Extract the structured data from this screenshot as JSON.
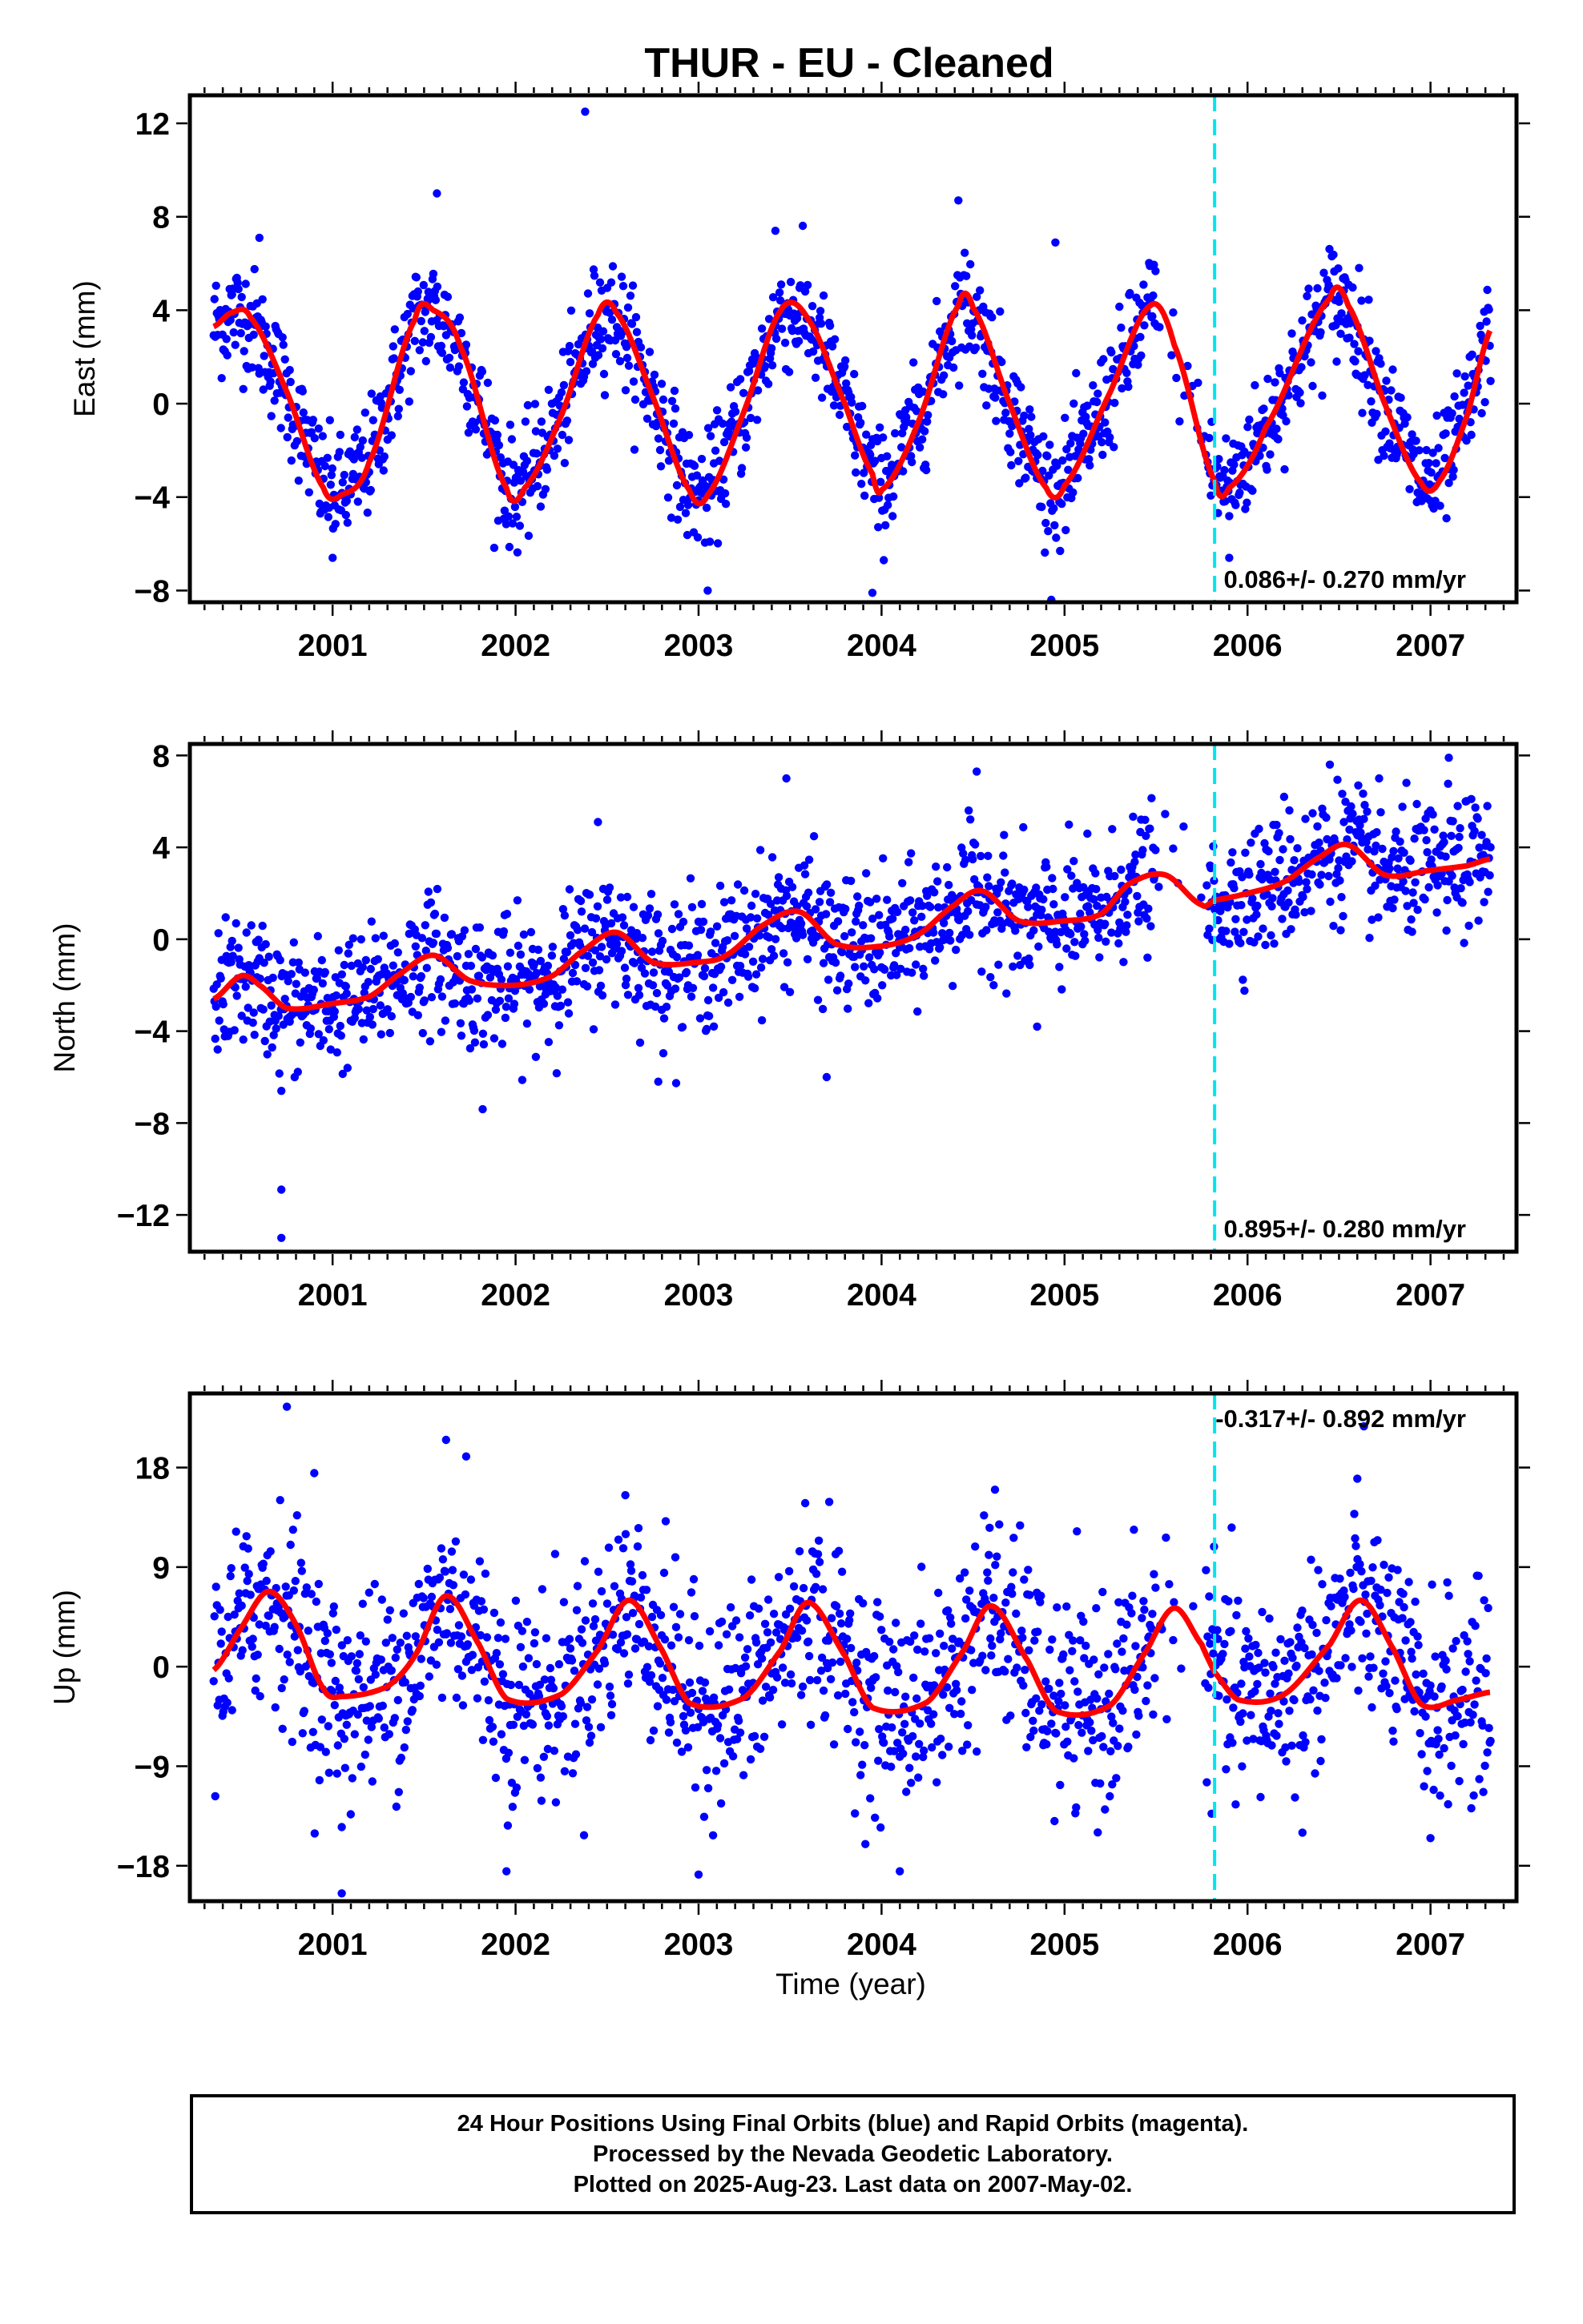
{
  "title": "THUR  - EU - Cleaned",
  "colors": {
    "points": "#0000ff",
    "fit": "#ff0000",
    "break_line": "#00e5ee",
    "frame": "#000000"
  },
  "footer": {
    "line1": "24 Hour Positions Using Final Orbits (blue) and Rapid Orbits (magenta).",
    "line2": "Processed by the Nevada Geodetic Laboratory.",
    "line3": "Plotted on 2025-Aug-23. Last data on 2007-May-02."
  },
  "chart_data": [
    {
      "type": "scatter",
      "name": "east",
      "ylabel": "East (mm)",
      "xlim": [
        2000.22,
        2007.47
      ],
      "ylim": [
        -8.5,
        13.2
      ],
      "yticks": [
        -8,
        -4,
        0,
        4,
        8,
        12
      ],
      "xticks": [
        2001,
        2002,
        2003,
        2004,
        2005,
        2006,
        2007
      ],
      "break_year": 2005.82,
      "velocity_label": "0.086+/- 0.270 mm/yr",
      "label_position": "bottom-right",
      "data_range": [
        2000.35,
        2007.33
      ],
      "gap": [
        2005.5,
        2005.78
      ],
      "trend": 0.086,
      "amplitude": 4.0,
      "phase": 2000.45,
      "noise": 1.2,
      "outliers": [
        [
          2002.38,
          12.5
        ],
        [
          2001.57,
          9.0
        ],
        [
          2004.42,
          8.7
        ],
        [
          2000.6,
          7.1
        ],
        [
          2003.42,
          7.4
        ],
        [
          2004.95,
          6.9
        ],
        [
          2003.95,
          -8.1
        ],
        [
          2003.05,
          -8.0
        ],
        [
          2005.9,
          -6.6
        ],
        [
          2001.0,
          -6.6
        ]
      ],
      "fit": [
        [
          2000.35,
          3.3
        ],
        [
          2000.45,
          3.9
        ],
        [
          2000.55,
          3.7
        ],
        [
          2000.75,
          0.5
        ],
        [
          2000.95,
          -3.6
        ],
        [
          2001.05,
          -3.9
        ],
        [
          2001.2,
          -2.5
        ],
        [
          2001.45,
          3.6
        ],
        [
          2001.55,
          4.0
        ],
        [
          2001.7,
          2.4
        ],
        [
          2001.95,
          -3.6
        ],
        [
          2002.05,
          -3.6
        ],
        [
          2002.25,
          -0.5
        ],
        [
          2002.45,
          3.8
        ],
        [
          2002.55,
          3.9
        ],
        [
          2002.75,
          0.3
        ],
        [
          2002.95,
          -3.7
        ],
        [
          2003.05,
          -3.9
        ],
        [
          2003.25,
          -0.3
        ],
        [
          2003.45,
          4.0
        ],
        [
          2003.6,
          3.6
        ],
        [
          2003.8,
          0.0
        ],
        [
          2003.95,
          -3.0
        ],
        [
          2004.0,
          -3.7
        ],
        [
          2004.2,
          -0.8
        ],
        [
          2004.42,
          4.2
        ],
        [
          2004.5,
          4.1
        ],
        [
          2004.7,
          0.0
        ],
        [
          2004.9,
          -3.6
        ],
        [
          2005.0,
          -3.5
        ],
        [
          2005.25,
          0.5
        ],
        [
          2005.47,
          4.2
        ],
        [
          2005.6,
          2.5
        ],
        [
          2005.82,
          -3.3
        ],
        [
          2005.9,
          -3.6
        ],
        [
          2006.1,
          -1.0
        ],
        [
          2006.45,
          4.5
        ],
        [
          2006.55,
          4.2
        ],
        [
          2006.75,
          0.0
        ],
        [
          2006.95,
          -3.4
        ],
        [
          2007.05,
          -3.3
        ],
        [
          2007.2,
          -0.5
        ],
        [
          2007.33,
          3.2
        ]
      ]
    },
    {
      "type": "scatter",
      "name": "north",
      "ylabel": "North (mm)",
      "xlim": [
        2000.22,
        2007.47
      ],
      "ylim": [
        -13.6,
        8.5
      ],
      "yticks": [
        -12,
        -8,
        -4,
        0,
        4,
        8
      ],
      "xticks": [
        2001,
        2002,
        2003,
        2004,
        2005,
        2006,
        2007
      ],
      "break_year": 2005.82,
      "velocity_label": "0.895+/- 0.280 mm/yr",
      "label_position": "bottom-right",
      "data_range": [
        2000.35,
        2007.33
      ],
      "gap": [
        2005.5,
        2005.78
      ],
      "trend": 0.895,
      "amplitude": 0.8,
      "phase": 2000.55,
      "noise": 1.4,
      "outliers": [
        [
          2000.72,
          -10.9
        ],
        [
          2000.72,
          -13.0
        ],
        [
          2000.72,
          -6.6
        ],
        [
          2001.82,
          -7.4
        ],
        [
          2003.48,
          7.0
        ],
        [
          2003.7,
          -6.0
        ],
        [
          2002.78,
          -6.2
        ],
        [
          2004.52,
          7.3
        ],
        [
          2006.45,
          7.6
        ],
        [
          2007.1,
          7.9
        ],
        [
          2002.45,
          5.1
        ],
        [
          2004.85,
          -3.8
        ],
        [
          2006.2,
          6.2
        ]
      ],
      "fit": [
        [
          2000.35,
          -2.6
        ],
        [
          2000.5,
          -1.6
        ],
        [
          2000.6,
          -2.0
        ],
        [
          2000.75,
          -3.0
        ],
        [
          2001.0,
          -2.8
        ],
        [
          2001.2,
          -2.5
        ],
        [
          2001.35,
          -1.6
        ],
        [
          2001.55,
          -0.7
        ],
        [
          2001.75,
          -1.8
        ],
        [
          2002.0,
          -2.0
        ],
        [
          2002.2,
          -1.6
        ],
        [
          2002.35,
          -0.6
        ],
        [
          2002.55,
          0.3
        ],
        [
          2002.75,
          -1.0
        ],
        [
          2003.0,
          -1.0
        ],
        [
          2003.15,
          -0.7
        ],
        [
          2003.35,
          0.6
        ],
        [
          2003.55,
          1.2
        ],
        [
          2003.75,
          -0.2
        ],
        [
          2004.0,
          -0.3
        ],
        [
          2004.2,
          0.2
        ],
        [
          2004.4,
          1.5
        ],
        [
          2004.55,
          2.1
        ],
        [
          2004.75,
          0.8
        ],
        [
          2005.0,
          0.8
        ],
        [
          2005.2,
          1.1
        ],
        [
          2005.35,
          2.4
        ],
        [
          2005.55,
          2.8
        ],
        [
          2005.75,
          1.5
        ],
        [
          2005.82,
          1.7
        ],
        [
          2006.0,
          2.0
        ],
        [
          2006.2,
          2.5
        ],
        [
          2006.4,
          3.6
        ],
        [
          2006.55,
          4.1
        ],
        [
          2006.75,
          2.8
        ],
        [
          2007.0,
          3.0
        ],
        [
          2007.2,
          3.2
        ],
        [
          2007.33,
          3.5
        ]
      ]
    },
    {
      "type": "scatter",
      "name": "up",
      "ylabel": "Up (mm)",
      "xlim": [
        2000.22,
        2007.47
      ],
      "ylim": [
        -21.2,
        24.7
      ],
      "yticks": [
        -18,
        -9,
        0,
        9,
        18
      ],
      "xticks": [
        2001,
        2002,
        2003,
        2004,
        2005,
        2006,
        2007
      ],
      "break_year": 2005.82,
      "velocity_label": "-0.317+/- 0.892 mm/yr",
      "label_position": "top-right",
      "data_range": [
        2000.35,
        2007.33
      ],
      "gap": [
        2005.5,
        2005.78
      ],
      "trend": -0.317,
      "amplitude": 4.5,
      "phase": 2000.62,
      "noise": 4.5,
      "outliers": [
        [
          2000.75,
          23.5
        ],
        [
          2000.9,
          17.5
        ],
        [
          2001.62,
          20.5
        ],
        [
          2001.73,
          19.0
        ],
        [
          2001.05,
          -20.5
        ],
        [
          2001.05,
          -14.5
        ],
        [
          2001.95,
          -18.5
        ],
        [
          2003.0,
          -18.8
        ],
        [
          2004.1,
          -18.5
        ],
        [
          2006.3,
          -15.0
        ],
        [
          2007.0,
          -15.5
        ],
        [
          2002.6,
          15.5
        ],
        [
          2004.62,
          16.0
        ],
        [
          2006.6,
          17.0
        ]
      ],
      "fit": [
        [
          2000.35,
          -0.3
        ],
        [
          2000.5,
          3.5
        ],
        [
          2000.65,
          6.8
        ],
        [
          2000.8,
          3.8
        ],
        [
          2000.95,
          -2.0
        ],
        [
          2001.05,
          -2.7
        ],
        [
          2001.3,
          -1.8
        ],
        [
          2001.45,
          1.0
        ],
        [
          2001.62,
          6.4
        ],
        [
          2001.8,
          2.0
        ],
        [
          2001.95,
          -2.9
        ],
        [
          2002.25,
          -2.5
        ],
        [
          2002.45,
          1.5
        ],
        [
          2002.62,
          6.0
        ],
        [
          2002.8,
          1.5
        ],
        [
          2002.95,
          -3.3
        ],
        [
          2003.25,
          -2.8
        ],
        [
          2003.45,
          1.5
        ],
        [
          2003.6,
          5.8
        ],
        [
          2003.8,
          1.0
        ],
        [
          2003.95,
          -3.7
        ],
        [
          2004.25,
          -3.2
        ],
        [
          2004.45,
          1.5
        ],
        [
          2004.6,
          5.5
        ],
        [
          2004.8,
          0.5
        ],
        [
          2004.95,
          -4.0
        ],
        [
          2005.25,
          -3.5
        ],
        [
          2005.45,
          1.5
        ],
        [
          2005.6,
          5.3
        ],
        [
          2005.75,
          2.0
        ],
        [
          2005.82,
          -0.5
        ],
        [
          2005.95,
          -3.0
        ],
        [
          2006.2,
          -2.5
        ],
        [
          2006.45,
          2.0
        ],
        [
          2006.62,
          6.0
        ],
        [
          2006.8,
          1.5
        ],
        [
          2006.95,
          -3.4
        ],
        [
          2007.15,
          -3.0
        ],
        [
          2007.33,
          -2.3
        ]
      ]
    }
  ]
}
